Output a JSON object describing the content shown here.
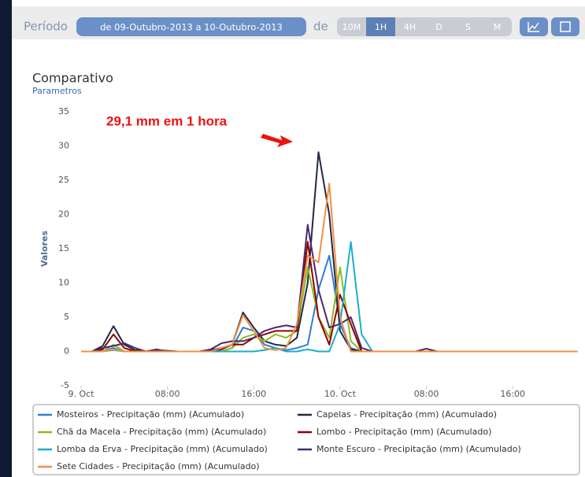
{
  "toolbar": {
    "period_label": "Período",
    "period": "de 09-Outubro-2013 a 10-Outubro-2013",
    "de": "de",
    "buttons": [
      "10M",
      "1H",
      "4H",
      "D",
      "S",
      "M"
    ],
    "active": 1
  },
  "chart_data": {
    "type": "line",
    "title": "Comparativo",
    "subtitle": "Parametros",
    "y_label": "Valores",
    "annotation": "29,1 mm em 1 hora",
    "annotation_color": "#ee1111",
    "x": [
      0,
      1,
      2,
      3,
      4,
      5,
      6,
      7,
      8,
      9,
      10,
      11,
      12,
      13,
      14,
      15,
      16,
      17,
      18,
      19,
      20,
      21,
      22,
      23,
      24,
      25,
      26,
      27,
      28,
      29,
      30,
      31,
      32,
      33,
      34,
      35,
      36,
      37,
      38,
      39,
      40,
      41,
      42,
      43,
      44,
      45,
      46
    ],
    "xlim": [
      0,
      46.7
    ],
    "xticks": [
      {
        "value": 0,
        "label": "9. Oct"
      },
      {
        "value": 8,
        "label": "08:00"
      },
      {
        "value": 16,
        "label": "16:00"
      },
      {
        "value": 24,
        "label": "10. Oct"
      },
      {
        "value": 32,
        "label": "08:00"
      },
      {
        "value": 40,
        "label": "16:00"
      }
    ],
    "ylim": [
      -5,
      35
    ],
    "yticks": [
      -5,
      0,
      5,
      10,
      15,
      20,
      25,
      30,
      35
    ],
    "grid": false,
    "series": [
      {
        "name": "Mosteiros - Precipitação (mm) (Acumulado)",
        "color": "#2f7ed8",
        "values": [
          0,
          0,
          0,
          0.5,
          0,
          0,
          0,
          0,
          0,
          0,
          0,
          0,
          0,
          0,
          0.5,
          3.5,
          3,
          1,
          0.5,
          0.2,
          0.5,
          1,
          9,
          14,
          4,
          0.5,
          0,
          0,
          0,
          0,
          0,
          0,
          0,
          0,
          0,
          0,
          0,
          0,
          0,
          0,
          0,
          0,
          0,
          0,
          0,
          0,
          0
        ]
      },
      {
        "name": "Capelas - Precipitação (mm) (Acumulado)",
        "color": "#1f2a44",
        "values": [
          0,
          0,
          0.8,
          3.7,
          1,
          0.2,
          0,
          0.2,
          0.1,
          0,
          0,
          0,
          0.2,
          0.5,
          1,
          5.7,
          3.5,
          1.5,
          1,
          0.8,
          2,
          10,
          29.1,
          20,
          3,
          0.3,
          0,
          0,
          0,
          0,
          0,
          0,
          0,
          0,
          0,
          0,
          0,
          0,
          0,
          0,
          0,
          0,
          0,
          0,
          0,
          0,
          0
        ]
      },
      {
        "name": "Chã da Macela - Precipitação (mm) (Acumulado)",
        "color": "#8bbc21",
        "values": [
          0,
          0,
          0,
          1,
          0,
          0,
          0,
          0,
          0,
          0,
          0,
          0,
          0,
          0,
          0.5,
          2,
          2.5,
          1.5,
          2.5,
          2,
          3,
          12.3,
          5,
          2,
          12.3,
          1.5,
          0,
          0,
          0,
          0,
          0,
          0,
          0,
          0,
          0,
          0,
          0,
          0,
          0,
          0,
          0,
          0,
          0,
          0,
          0,
          0,
          0
        ]
      },
      {
        "name": "Lombo - Precipitação (mm) (Acumulado)",
        "color": "#910000",
        "values": [
          0,
          0,
          0.3,
          2.5,
          0.5,
          0,
          0,
          0,
          0,
          0,
          0,
          0,
          0,
          0.3,
          1,
          1,
          2,
          2.5,
          3,
          3,
          3,
          16,
          5,
          1,
          8.3,
          4,
          0,
          0,
          0,
          0,
          0,
          0,
          0,
          0,
          0,
          0,
          0,
          0,
          0,
          0,
          0,
          0,
          0,
          0,
          0,
          0,
          0
        ]
      },
      {
        "name": "Lomba da Erva - Precipitação (mm) (Acumulado)",
        "color": "#1aadce",
        "values": [
          0,
          0,
          0,
          0.2,
          0,
          0,
          0,
          0,
          0,
          0,
          0,
          0,
          0,
          0,
          0,
          0,
          0,
          0.2,
          0.5,
          0,
          0,
          0.3,
          0,
          0,
          4,
          16,
          2.5,
          0,
          0,
          0,
          0,
          0,
          0,
          0,
          0,
          0,
          0,
          0,
          0,
          0,
          0,
          0,
          0,
          0,
          0,
          0,
          0
        ]
      },
      {
        "name": "Monte Escuro - Precipitação (mm) (Acumulado)",
        "color": "#492970",
        "values": [
          0,
          0,
          0.5,
          0.8,
          1.2,
          0.5,
          0,
          0.3,
          0,
          0,
          0,
          0,
          0.3,
          1.2,
          1.5,
          1.5,
          2,
          3,
          3.5,
          3.8,
          3.5,
          18.5,
          9,
          3.5,
          4,
          5,
          0.5,
          0,
          0,
          0,
          0,
          0,
          0.4,
          0,
          0,
          0,
          0,
          0,
          0,
          0,
          0,
          0,
          0,
          0,
          0,
          0,
          0
        ]
      },
      {
        "name": "Sete Cidades - Precipitação (mm) (Acumulado)",
        "color": "#f28f43",
        "values": [
          0,
          0,
          0,
          0.3,
          0,
          0,
          0,
          0,
          0,
          0,
          0,
          0,
          0,
          0.5,
          1,
          5.3,
          3,
          0.5,
          0.2,
          0.5,
          4,
          14,
          13,
          24.5,
          5,
          0,
          0,
          0,
          0,
          0,
          0,
          0,
          0,
          0,
          0,
          0,
          0,
          0,
          0,
          0,
          0,
          0,
          0,
          0,
          0,
          0,
          0
        ]
      }
    ]
  }
}
